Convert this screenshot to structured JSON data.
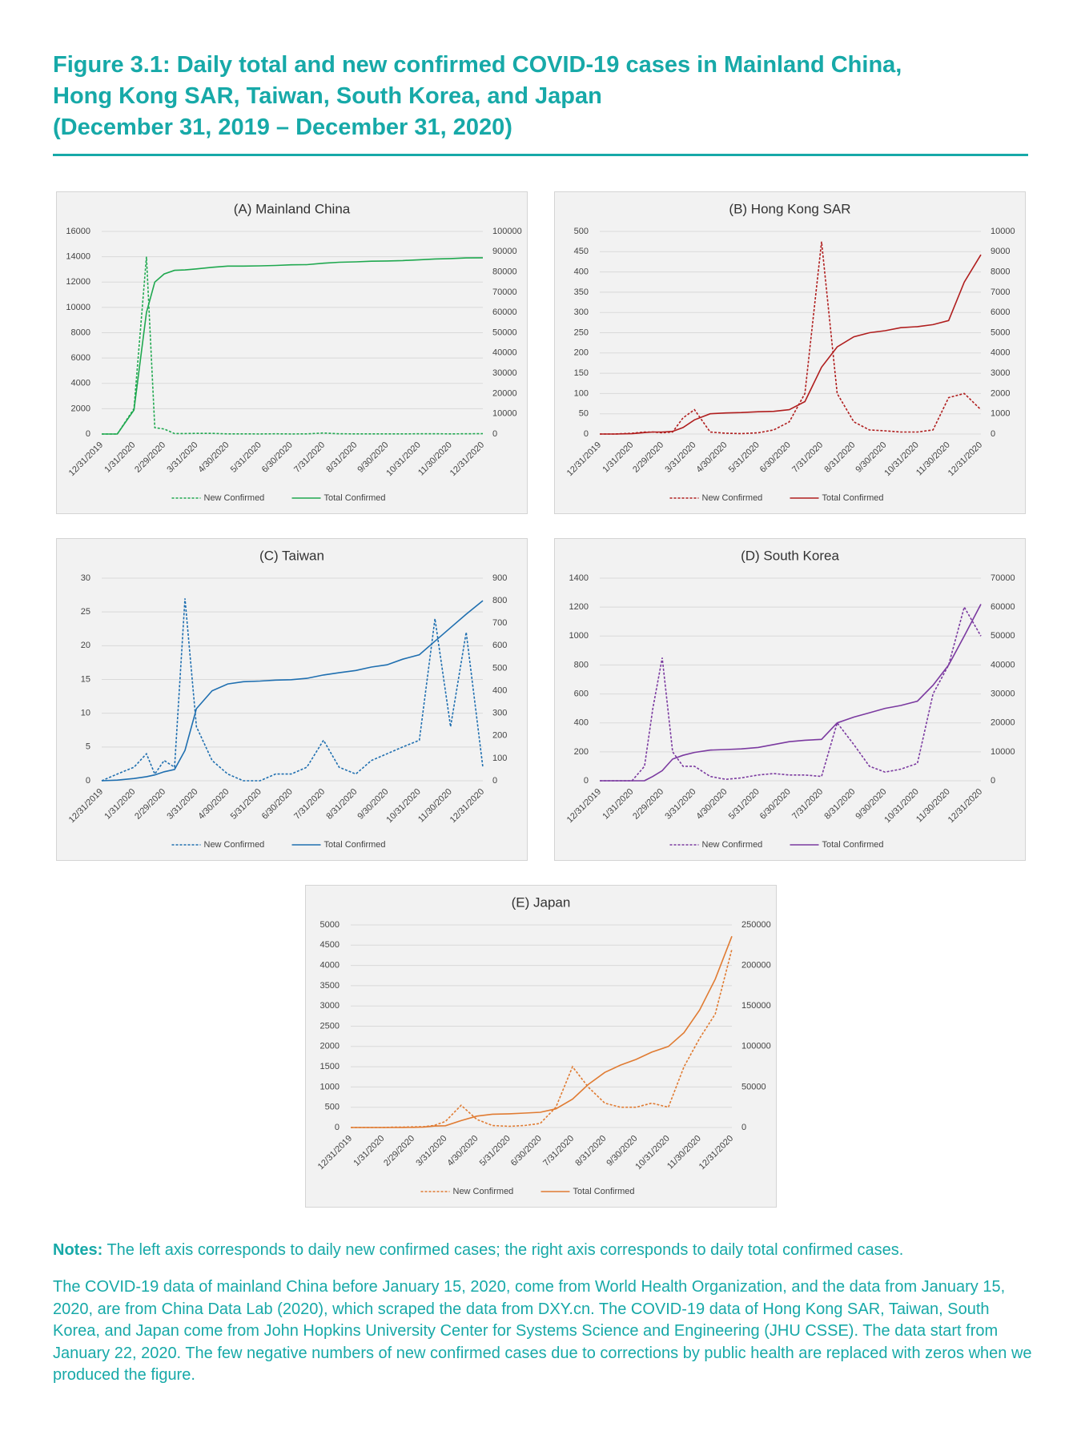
{
  "title": [
    "Figure 3.1: Daily total and new confirmed COVID-19 cases in Mainland China,",
    "Hong Kong SAR, Taiwan, South Korea, and Japan",
    "(December 31, 2019 – December 31, 2020)"
  ],
  "notes": {
    "label": "Notes:",
    "text": "The left axis corresponds to daily new confirmed cases; the right axis corresponds to daily total confirmed cases."
  },
  "source": "The COVID-19 data of mainland China before January 15, 2020, come from World Health Organization, and the data from January 15, 2020, are from China Data Lab (2020), which scraped the data from DXY.cn. The COVID-19 data of Hong Kong SAR, Taiwan, South Korea, and Japan come from John Hopkins University Center for Systems Science and Engineering (JHU CSSE). The data start from January 22, 2020. The few negative numbers of new confirmed cases due to corrections by public health are replaced with zeros when we produced the figure.",
  "chart_data": [
    {
      "type": "line",
      "title": "(A) Mainland China",
      "x": [
        "12/31/2019",
        "1/15/2020",
        "1/31/2020",
        "2/12/2020",
        "2/20/2020",
        "2/29/2020",
        "3/10/2020",
        "3/20/2020",
        "3/31/2020",
        "4/15/2020",
        "4/30/2020",
        "5/15/2020",
        "5/31/2020",
        "6/15/2020",
        "6/30/2020",
        "7/15/2020",
        "7/31/2020",
        "8/15/2020",
        "8/31/2020",
        "9/15/2020",
        "9/30/2020",
        "10/15/2020",
        "10/31/2020",
        "11/15/2020",
        "11/30/2020",
        "12/15/2020",
        "12/31/2020"
      ],
      "xlim": [
        "12/31/2019",
        "12/31/2020"
      ],
      "xticks": [
        "12/31/2019",
        "1/31/2020",
        "2/29/2020",
        "3/31/2020",
        "4/30/2020",
        "5/31/2020",
        "6/30/2020",
        "7/31/2020",
        "8/31/2020",
        "9/30/2020",
        "10/31/2020",
        "11/30/2020",
        "12/31/2020"
      ],
      "ylim": [
        0,
        16000
      ],
      "yticks": [
        0,
        2000,
        4000,
        6000,
        8000,
        10000,
        12000,
        14000,
        16000
      ],
      "y2lim": [
        0,
        100000
      ],
      "y2ticks": [
        0,
        10000,
        20000,
        30000,
        40000,
        50000,
        60000,
        70000,
        80000,
        90000,
        100000
      ],
      "grid": true,
      "series": [
        {
          "name": "New Confirmed",
          "color": "#1fa84f",
          "values": [
            0,
            0,
            2000,
            14000,
            500,
            400,
            30,
            40,
            50,
            50,
            10,
            10,
            5,
            20,
            5,
            10,
            80,
            20,
            10,
            15,
            10,
            15,
            20,
            20,
            10,
            20,
            30
          ]
        },
        {
          "name": "Total Confirmed",
          "color": "#1fa84f",
          "axis": "y2",
          "values": [
            0,
            50,
            11800,
            60000,
            75000,
            79000,
            80800,
            81000,
            81500,
            82300,
            82900,
            82900,
            83000,
            83200,
            83500,
            83600,
            84300,
            84800,
            85000,
            85300,
            85400,
            85600,
            86000,
            86400,
            86600,
            86900,
            87000
          ]
        }
      ]
    },
    {
      "type": "line",
      "title": "(B) Hong Kong SAR",
      "x": [
        "12/31/2019",
        "1/15/2020",
        "1/31/2020",
        "2/12/2020",
        "2/20/2020",
        "2/29/2020",
        "3/10/2020",
        "3/20/2020",
        "3/31/2020",
        "4/15/2020",
        "4/30/2020",
        "5/15/2020",
        "5/31/2020",
        "6/15/2020",
        "6/30/2020",
        "7/15/2020",
        "7/31/2020",
        "8/15/2020",
        "8/31/2020",
        "9/15/2020",
        "9/30/2020",
        "10/15/2020",
        "10/31/2020",
        "11/15/2020",
        "11/30/2020",
        "12/15/2020",
        "12/31/2020"
      ],
      "xlim": [
        "12/31/2019",
        "12/31/2020"
      ],
      "xticks": [
        "12/31/2019",
        "1/31/2020",
        "2/29/2020",
        "3/31/2020",
        "4/30/2020",
        "5/31/2020",
        "6/30/2020",
        "7/31/2020",
        "8/31/2020",
        "9/30/2020",
        "10/31/2020",
        "11/30/2020",
        "12/31/2020"
      ],
      "ylim": [
        0,
        500
      ],
      "yticks": [
        0,
        50,
        100,
        150,
        200,
        250,
        300,
        350,
        400,
        450,
        500
      ],
      "y2lim": [
        0,
        10000
      ],
      "y2ticks": [
        0,
        1000,
        2000,
        3000,
        4000,
        5000,
        6000,
        7000,
        8000,
        9000,
        10000
      ],
      "grid": true,
      "series": [
        {
          "name": "New Confirmed",
          "color": "#b01e1e",
          "values": [
            0,
            0,
            2,
            5,
            5,
            3,
            5,
            40,
            60,
            5,
            2,
            1,
            3,
            10,
            30,
            100,
            475,
            100,
            30,
            10,
            8,
            5,
            5,
            10,
            90,
            100,
            60
          ]
        },
        {
          "name": "Total Confirmed",
          "color": "#b01e1e",
          "axis": "y2",
          "values": [
            0,
            0,
            15,
            70,
            100,
            100,
            130,
            320,
            700,
            1000,
            1040,
            1060,
            1100,
            1120,
            1200,
            1600,
            3300,
            4300,
            4800,
            5000,
            5100,
            5250,
            5300,
            5400,
            5600,
            7500,
            8850
          ]
        }
      ]
    },
    {
      "type": "line",
      "title": "(C) Taiwan",
      "x": [
        "12/31/2019",
        "1/15/2020",
        "1/31/2020",
        "2/12/2020",
        "2/20/2020",
        "2/29/2020",
        "3/10/2020",
        "3/20/2020",
        "3/31/2020",
        "4/15/2020",
        "4/30/2020",
        "5/15/2020",
        "5/31/2020",
        "6/15/2020",
        "6/30/2020",
        "7/15/2020",
        "7/31/2020",
        "8/15/2020",
        "8/31/2020",
        "9/15/2020",
        "9/30/2020",
        "10/15/2020",
        "10/31/2020",
        "11/15/2020",
        "11/30/2020",
        "12/15/2020",
        "12/31/2020"
      ],
      "xlim": [
        "12/31/2019",
        "12/31/2020"
      ],
      "xticks": [
        "12/31/2019",
        "1/31/2020",
        "2/29/2020",
        "3/31/2020",
        "4/30/2020",
        "5/31/2020",
        "6/30/2020",
        "7/31/2020",
        "8/31/2020",
        "9/30/2020",
        "10/31/2020",
        "11/30/2020",
        "12/31/2020"
      ],
      "ylim": [
        0,
        30
      ],
      "yticks": [
        0,
        5,
        10,
        15,
        20,
        25,
        30
      ],
      "y2lim": [
        0,
        900
      ],
      "y2ticks": [
        0,
        100,
        200,
        300,
        400,
        500,
        600,
        700,
        800,
        900
      ],
      "grid": true,
      "series": [
        {
          "name": "New Confirmed",
          "color": "#1f6fb0",
          "values": [
            0,
            1,
            2,
            4,
            1,
            3,
            2,
            27,
            8,
            3,
            1,
            0,
            0,
            1,
            1,
            2,
            6,
            2,
            1,
            3,
            4,
            5,
            6,
            24,
            8,
            22,
            2
          ]
        },
        {
          "name": "Total Confirmed",
          "color": "#1f6fb0",
          "axis": "y2",
          "values": [
            0,
            3,
            10,
            18,
            26,
            40,
            50,
            135,
            320,
            400,
            430,
            440,
            443,
            447,
            449,
            455,
            470,
            480,
            490,
            505,
            515,
            540,
            560,
            620,
            680,
            740,
            800
          ]
        }
      ]
    },
    {
      "type": "line",
      "title": "(D) South Korea",
      "x": [
        "12/31/2019",
        "1/15/2020",
        "1/31/2020",
        "2/12/2020",
        "2/20/2020",
        "2/29/2020",
        "3/10/2020",
        "3/20/2020",
        "3/31/2020",
        "4/15/2020",
        "4/30/2020",
        "5/15/2020",
        "5/31/2020",
        "6/15/2020",
        "6/30/2020",
        "7/15/2020",
        "7/31/2020",
        "8/15/2020",
        "8/31/2020",
        "9/15/2020",
        "9/30/2020",
        "10/15/2020",
        "10/31/2020",
        "11/15/2020",
        "11/30/2020",
        "12/15/2020",
        "12/31/2020"
      ],
      "xlim": [
        "12/31/2019",
        "12/31/2020"
      ],
      "xticks": [
        "12/31/2019",
        "1/31/2020",
        "2/29/2020",
        "3/31/2020",
        "4/30/2020",
        "5/31/2020",
        "6/30/2020",
        "7/31/2020",
        "8/31/2020",
        "9/30/2020",
        "10/31/2020",
        "11/30/2020",
        "12/31/2020"
      ],
      "ylim": [
        0,
        1400
      ],
      "yticks": [
        0,
        200,
        400,
        600,
        800,
        1000,
        1200,
        1400
      ],
      "y2lim": [
        0,
        70000
      ],
      "y2ticks": [
        0,
        10000,
        20000,
        30000,
        40000,
        50000,
        60000,
        70000
      ],
      "grid": true,
      "series": [
        {
          "name": "New Confirmed",
          "color": "#7b3aa0",
          "values": [
            0,
            0,
            0,
            100,
            500,
            850,
            200,
            100,
            100,
            30,
            10,
            20,
            40,
            50,
            40,
            40,
            30,
            400,
            250,
            100,
            60,
            80,
            120,
            600,
            800,
            1200,
            1000
          ]
        },
        {
          "name": "Total Confirmed",
          "color": "#7b3aa0",
          "axis": "y2",
          "values": [
            0,
            0,
            10,
            30,
            1500,
            3500,
            7500,
            8800,
            9800,
            10600,
            10800,
            11000,
            11500,
            12500,
            13500,
            14000,
            14300,
            20000,
            22000,
            23500,
            25000,
            26000,
            27500,
            33000,
            40000,
            50000,
            61000
          ]
        }
      ]
    },
    {
      "type": "line",
      "title": "(E) Japan",
      "x": [
        "12/31/2019",
        "1/15/2020",
        "1/31/2020",
        "2/12/2020",
        "2/20/2020",
        "2/29/2020",
        "3/10/2020",
        "3/20/2020",
        "3/31/2020",
        "4/15/2020",
        "4/30/2020",
        "5/15/2020",
        "5/31/2020",
        "6/15/2020",
        "6/30/2020",
        "7/15/2020",
        "7/31/2020",
        "8/15/2020",
        "8/31/2020",
        "9/15/2020",
        "9/30/2020",
        "10/15/2020",
        "10/31/2020",
        "11/15/2020",
        "11/30/2020",
        "12/15/2020",
        "12/31/2020"
      ],
      "xlim": [
        "12/31/2019",
        "12/31/2020"
      ],
      "xticks": [
        "12/31/2019",
        "1/31/2020",
        "2/29/2020",
        "3/31/2020",
        "4/30/2020",
        "5/31/2020",
        "6/30/2020",
        "7/31/2020",
        "8/31/2020",
        "9/30/2020",
        "10/31/2020",
        "11/30/2020",
        "12/31/2020"
      ],
      "ylim": [
        0,
        5000
      ],
      "yticks": [
        0,
        500,
        1000,
        1500,
        2000,
        2500,
        3000,
        3500,
        4000,
        4500,
        5000
      ],
      "y2lim": [
        0,
        250000
      ],
      "y2ticks": [
        0,
        50000,
        100000,
        150000,
        200000,
        250000
      ],
      "grid": true,
      "series": [
        {
          "name": "New Confirmed",
          "color": "#e07b32",
          "values": [
            0,
            0,
            0,
            10,
            10,
            15,
            20,
            50,
            150,
            550,
            200,
            50,
            30,
            50,
            100,
            500,
            1500,
            1000,
            600,
            500,
            500,
            600,
            500,
            1500,
            2200,
            2800,
            4400
          ]
        },
        {
          "name": "Total Confirmed",
          "color": "#e07b32",
          "axis": "y2",
          "values": [
            0,
            0,
            15,
            30,
            100,
            240,
            550,
            1800,
            2200,
            8500,
            14000,
            16400,
            16900,
            17800,
            18800,
            23000,
            35000,
            53000,
            68000,
            77000,
            84000,
            93000,
            100000,
            117000,
            145000,
            183000,
            236000
          ]
        }
      ]
    }
  ]
}
